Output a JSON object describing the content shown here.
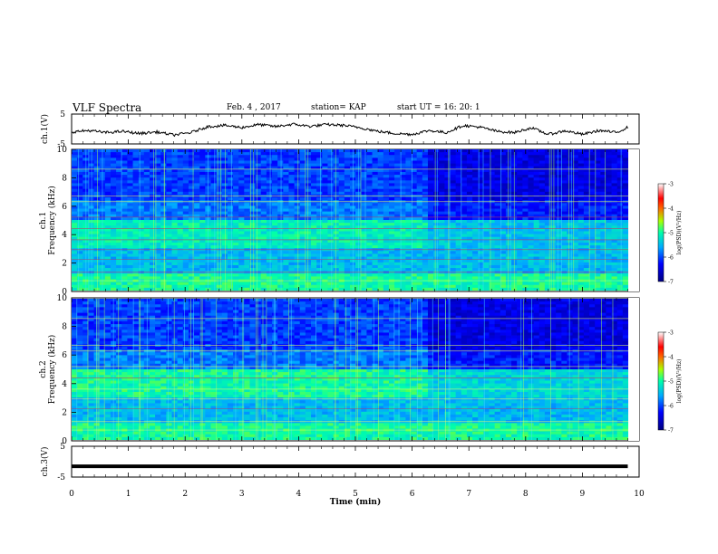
{
  "header": {
    "title": "VLF Spectra",
    "date": "Feb. 4 , 2017",
    "station": "station= KAP",
    "start_time": "start UT = 16: 20: 1"
  },
  "chart_data": [
    {
      "type": "line",
      "panel": "waveform-ch1",
      "ylabel": "ch.1(V)",
      "ylim": [
        -5,
        5
      ],
      "yticks": [
        "5",
        "-5"
      ],
      "x": [
        0,
        0.3,
        0.6,
        0.9,
        1.2,
        1.5,
        1.8,
        2.1,
        2.4,
        2.7,
        3.0,
        3.3,
        3.6,
        3.9,
        4.2,
        4.5,
        4.8,
        5.1,
        5.4,
        5.7,
        6.0,
        6.3,
        6.6,
        6.9,
        7.2,
        7.5,
        7.8,
        8.1,
        8.4,
        8.7,
        9.0,
        9.3,
        9.6,
        9.8
      ],
      "y": [
        -1,
        -0.5,
        -1.2,
        -0.8,
        -1.5,
        -1,
        -2,
        -1.2,
        0.8,
        1.2,
        0.5,
        1.5,
        0.8,
        1.6,
        0.9,
        1.5,
        1.2,
        0.4,
        -0.8,
        -1.5,
        -1.8,
        -0.5,
        -1.2,
        1.2,
        0.6,
        -0.8,
        -1.2,
        0.4,
        -1.8,
        -0.6,
        -1.8,
        -0.5,
        -1.2,
        0.6
      ]
    },
    {
      "type": "heatmap",
      "panel": "spectrogram-ch1",
      "ylabel": "ch.1 Frequency (kHz)",
      "ylim": [
        0,
        10
      ],
      "yticks": [
        "0",
        "2",
        "4",
        "6",
        "8",
        "10"
      ],
      "colorbar": {
        "label": "log(PSD)(V²/Hz)",
        "range": [
          -7,
          -3
        ],
        "ticks": [
          "-3",
          "-4",
          "-5",
          "-6",
          "-7"
        ]
      }
    },
    {
      "type": "heatmap",
      "panel": "spectrogram-ch2",
      "ylabel": "ch.2 Frequency (kHz)",
      "ylim": [
        0,
        10
      ],
      "yticks": [
        "0",
        "2",
        "4",
        "6",
        "8",
        "10"
      ],
      "colorbar": {
        "label": "log(PSD)(V²/Hz)",
        "range": [
          -7,
          -3
        ],
        "ticks": [
          "-3",
          "-4",
          "-5",
          "-6",
          "-7"
        ]
      }
    },
    {
      "type": "line",
      "panel": "waveform-ch3",
      "ylabel": "ch.3(V)",
      "ylim": [
        -5,
        5
      ],
      "yticks": [
        "5",
        "-5"
      ],
      "x": [
        0,
        9.8
      ],
      "y": [
        -1.5,
        -1.5
      ]
    }
  ],
  "xaxis": {
    "label": "Time (min)",
    "range": [
      0,
      10
    ],
    "ticks": [
      "0",
      "1",
      "2",
      "3",
      "4",
      "5",
      "6",
      "7",
      "8",
      "9",
      "10"
    ]
  },
  "colors": {
    "low": "#00008f",
    "mid_low": "#0070ff",
    "mid": "#00e0c0",
    "mid_high": "#a0ff40",
    "high": "#ff3000",
    "line": "#000000"
  }
}
